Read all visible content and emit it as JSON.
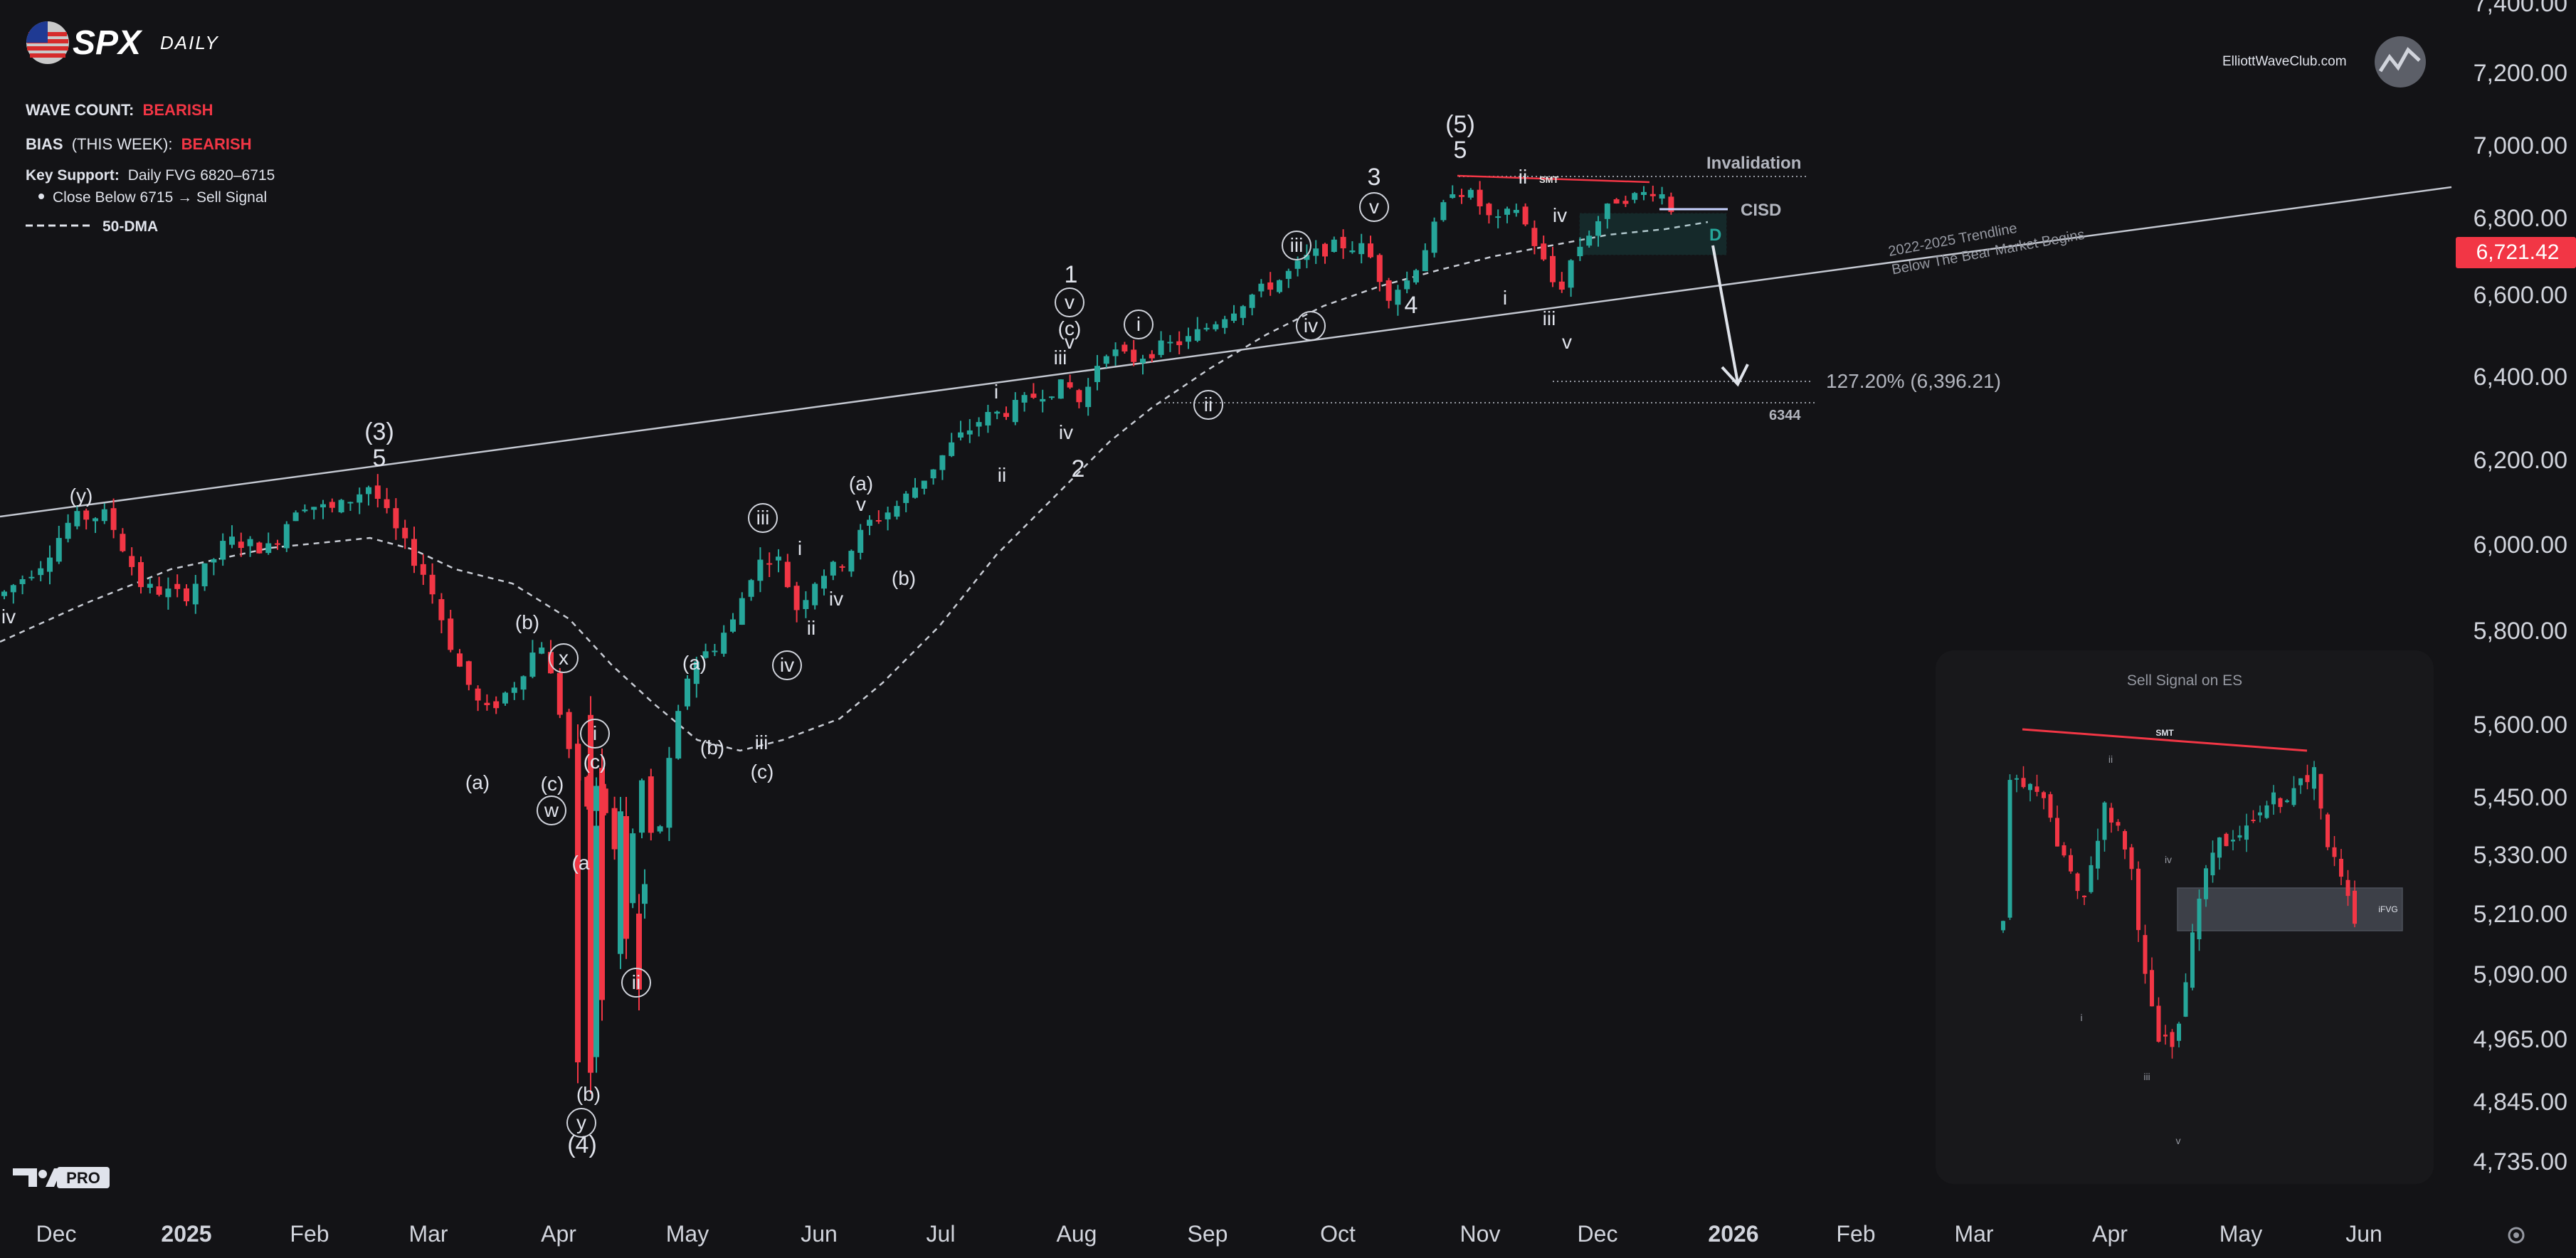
{
  "header": {
    "symbol": "SPX",
    "timeframe": "DAILY",
    "wave_count_label": "WAVE COUNT:",
    "wave_count_value": "BEARISH",
    "bias_label": "BIAS",
    "bias_period": "(THIS WEEK):",
    "bias_value": "BEARISH",
    "key_support_label": "Key Support:",
    "key_support_value": "Daily FVG 6820–6715",
    "bullet": "Close Below 6715 → Sell Signal",
    "ma_legend": "50-DMA"
  },
  "brand": {
    "site": "ElliottWaveClub.com",
    "tv_badge": "PRO"
  },
  "colors": {
    "up": "#26a69a",
    "down": "#f23645",
    "bearish": "#f23645",
    "background": "#131316",
    "trendline": "#c3c7d0"
  },
  "price_axis": {
    "ticks": [
      "7,400.00",
      "7,200.00",
      "7,000.00",
      "6,800.00",
      "6,600.00",
      "6,400.00",
      "6,200.00",
      "6,000.00",
      "5,800.00",
      "5,600.00",
      "5,450.00",
      "5,330.00",
      "5,210.00",
      "5,090.00",
      "4,965.00",
      "4,845.00",
      "4,735.00"
    ],
    "current_price": "6,721.42"
  },
  "time_axis": {
    "labels": [
      "Dec",
      "2025",
      "Feb",
      "Mar",
      "Apr",
      "May",
      "Jun",
      "Jul",
      "Aug",
      "Sep",
      "Oct",
      "Nov",
      "Dec",
      "2026",
      "Feb",
      "Mar",
      "Apr",
      "May",
      "Jun"
    ]
  },
  "annotations": {
    "invalidation": "Invalidation",
    "cisd": "CISD",
    "smt": "SMT",
    "fvg_label": "D",
    "trendline_line1": "2022-2025 Trendline",
    "trendline_line2": "Below The Bear Market Begins",
    "fib_target": "127.20% (6,396.21)",
    "level_6344": "6344"
  },
  "waves": [
    {
      "t": "(y)"
    },
    {
      "t": "iv"
    },
    {
      "t": "(3)"
    },
    {
      "t": "5"
    },
    {
      "t": "(b)"
    },
    {
      "t": "x"
    },
    {
      "t": "(a)"
    },
    {
      "t": "(c)"
    },
    {
      "t": "w"
    },
    {
      "t": "i"
    },
    {
      "t": "(c)"
    },
    {
      "t": "(a"
    },
    {
      "t": "ii"
    },
    {
      "t": "(b)"
    },
    {
      "t": "y"
    },
    {
      "t": "(4)"
    },
    {
      "t": "(a)"
    },
    {
      "t": "(b)"
    },
    {
      "t": "iii"
    },
    {
      "t": "(c)"
    },
    {
      "t": "i"
    },
    {
      "t": "ii"
    },
    {
      "t": "iv"
    },
    {
      "t": "iv"
    },
    {
      "t": "iii"
    },
    {
      "t": "(a)"
    },
    {
      "t": "v"
    },
    {
      "t": "(b)"
    },
    {
      "t": "i"
    },
    {
      "t": "ii"
    },
    {
      "t": "iii"
    },
    {
      "t": "iv"
    },
    {
      "t": "1"
    },
    {
      "t": "v"
    },
    {
      "t": "(c)"
    },
    {
      "t": "v"
    },
    {
      "t": "2"
    },
    {
      "t": "i"
    },
    {
      "t": "ii"
    },
    {
      "t": "iii"
    },
    {
      "t": "iv"
    },
    {
      "t": "3"
    },
    {
      "t": "v"
    },
    {
      "t": "4"
    },
    {
      "t": "(5)"
    },
    {
      "t": "5"
    },
    {
      "t": "ii"
    },
    {
      "t": "i"
    },
    {
      "t": "iv"
    },
    {
      "t": "iii"
    },
    {
      "t": "v"
    }
  ],
  "inset": {
    "title": "Sell Signal on ES",
    "smt": "SMT",
    "ifvg": "iFVG",
    "waves": [
      "ii",
      "iv",
      "i",
      "iii",
      "v"
    ]
  },
  "chart_data": {
    "type": "candlestick",
    "title": "SPX DAILY",
    "ylim": [
      4700,
      7450
    ],
    "x_labels": [
      "Dec",
      "2025",
      "Feb",
      "Mar",
      "Apr",
      "May",
      "Jun",
      "Jul",
      "Aug",
      "Sep",
      "Oct",
      "Nov",
      "Dec",
      "2026",
      "Feb",
      "Mar",
      "Apr",
      "May",
      "Jun"
    ],
    "key_points": [
      {
        "date": "2024-12",
        "close": 6050
      },
      {
        "date": "2025-02",
        "close": 6140
      },
      {
        "date": "2025-03",
        "close": 5530
      },
      {
        "date": "2025-04",
        "low": 4835
      },
      {
        "date": "2025-05",
        "close": 5950
      },
      {
        "date": "2025-06",
        "close": 6200
      },
      {
        "date": "2025-07",
        "close": 6390
      },
      {
        "date": "2025-08",
        "close": 6470
      },
      {
        "date": "2025-09",
        "close": 6690
      },
      {
        "date": "2025-10",
        "close": 6850
      },
      {
        "date": "2025-11",
        "low": 6550
      },
      {
        "date": "2025-12",
        "close": 6721.42
      }
    ],
    "levels": [
      {
        "name": "Invalidation",
        "price": 6920
      },
      {
        "name": "CISD",
        "price": 6835
      },
      {
        "name": "127.20%",
        "price": 6396.21
      },
      {
        "name": "6344",
        "price": 6344
      }
    ],
    "series": [
      {
        "name": "50-DMA"
      }
    ],
    "legend": "top-left"
  }
}
